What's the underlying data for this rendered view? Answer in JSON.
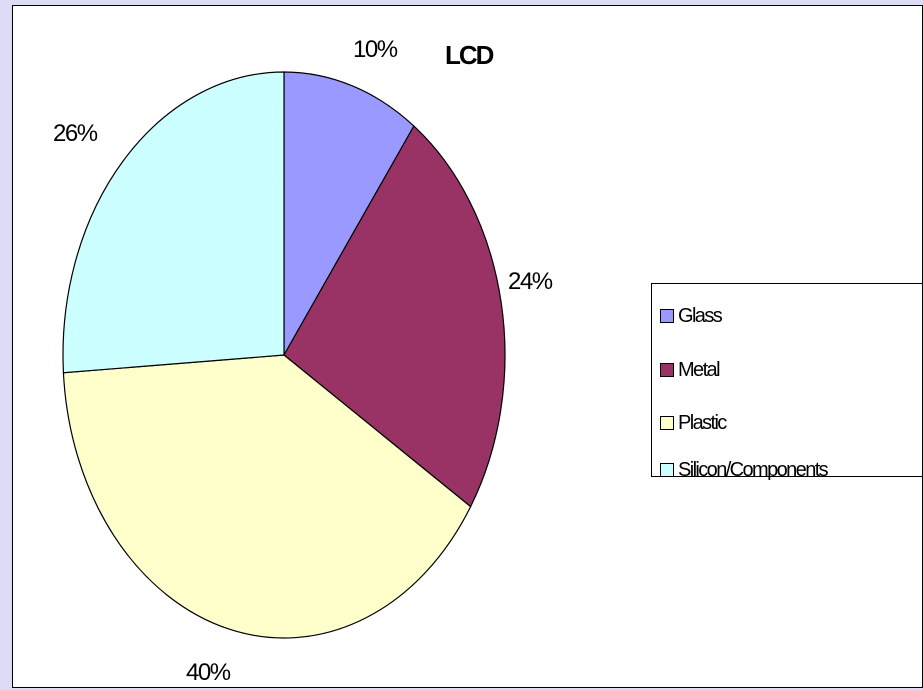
{
  "chart_data": {
    "type": "pie",
    "title": "LCD",
    "categories": [
      "Glass",
      "Metal",
      "Plastic",
      "Silicon/Components"
    ],
    "values": [
      10,
      24,
      40,
      26
    ],
    "value_labels": [
      "10%",
      "24%",
      "40%",
      "26%"
    ],
    "colors": [
      "#9999ff",
      "#993366",
      "#ffffcc",
      "#ccffff"
    ],
    "legend_position": "right"
  }
}
